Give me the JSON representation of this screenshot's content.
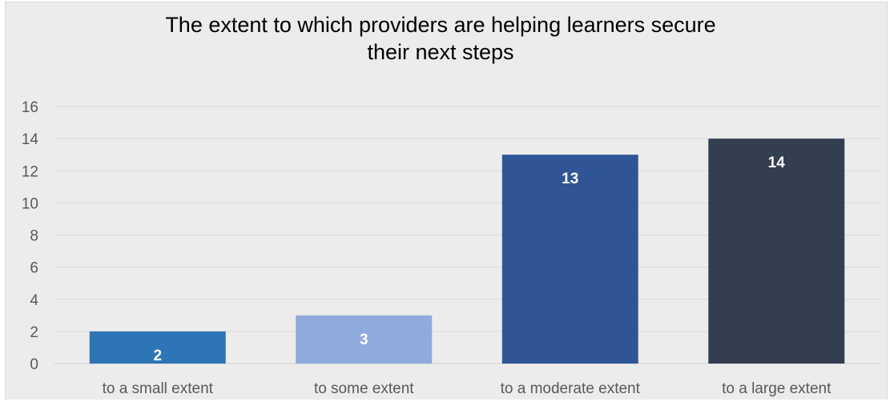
{
  "chart_data": {
    "type": "bar",
    "title": "The extent to which providers are helping learners secure their next steps",
    "title_lines": [
      "The extent to which providers are helping learners secure",
      "their next steps"
    ],
    "categories": [
      "to a small extent",
      "to some extent",
      "to a moderate extent",
      "to a large extent"
    ],
    "values": [
      2,
      3,
      13,
      14
    ],
    "colors": [
      "#2e75b6",
      "#8faadc",
      "#2f5597",
      "#333f50"
    ],
    "ylim": [
      0,
      16
    ],
    "yticks": [
      0,
      2,
      4,
      6,
      8,
      10,
      12,
      14,
      16
    ],
    "grid": true,
    "xlabel": "",
    "ylabel": ""
  }
}
